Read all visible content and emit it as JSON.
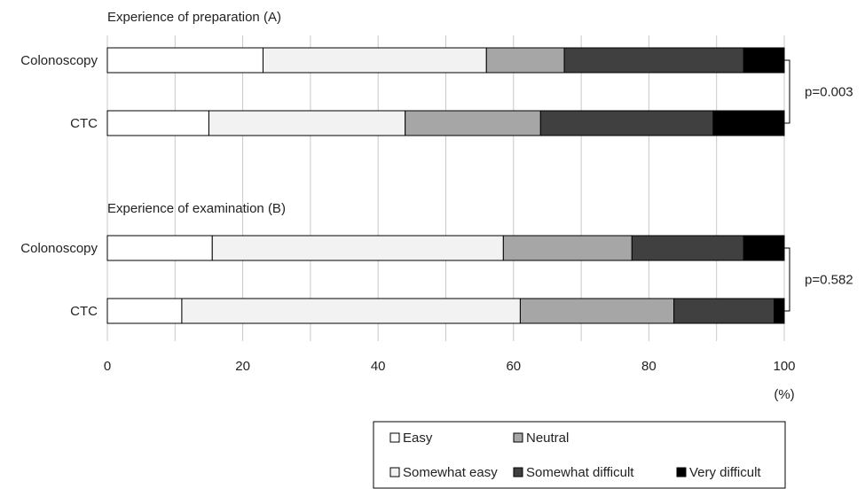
{
  "chart_data": {
    "type": "bar",
    "orientation": "horizontal",
    "stacked": true,
    "x_unit": "(%)",
    "xlim": [
      0,
      100
    ],
    "xticks": [
      0,
      20,
      40,
      60,
      80,
      100
    ],
    "grid": true,
    "legend_position": "bottom-right",
    "segments": [
      {
        "name": "Easy",
        "color": "#ffffff"
      },
      {
        "name": "Somewhat easy",
        "color": "#f2f2f2"
      },
      {
        "name": "Neutral",
        "color": "#a6a6a6"
      },
      {
        "name": "Somewhat difficult",
        "color": "#404040"
      },
      {
        "name": "Very difficult",
        "color": "#000000"
      }
    ],
    "panels": [
      {
        "title": "Experience of preparation (A)",
        "p_value": "p=0.003",
        "bars": [
          {
            "label": "Colonoscopy",
            "values": [
              23,
              33,
              11.5,
              26.5,
              6
            ]
          },
          {
            "label": "CTC",
            "values": [
              15,
              29,
              20,
              25.5,
              10.5
            ]
          }
        ]
      },
      {
        "title": "Experience of examination (B)",
        "p_value": "p=0.582",
        "bars": [
          {
            "label": "Colonoscopy",
            "values": [
              15.5,
              43,
              19,
              16.5,
              6
            ]
          },
          {
            "label": "CTC",
            "values": [
              11,
              50,
              22.7,
              14.8,
              1.5
            ]
          }
        ]
      }
    ]
  }
}
